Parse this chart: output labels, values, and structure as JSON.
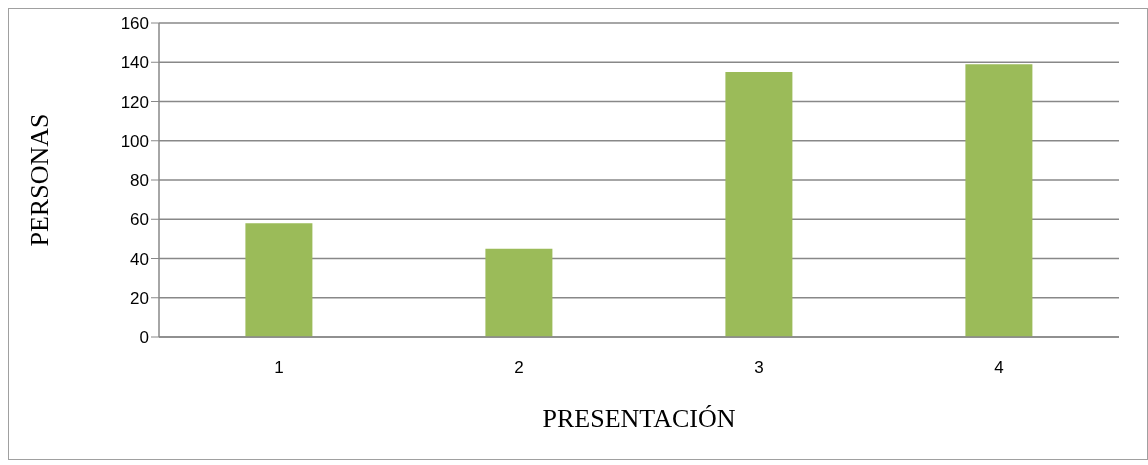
{
  "chart_data": {
    "type": "bar",
    "xlabel": "PRESENTACIÓN",
    "ylabel": "PERSONAS",
    "categories": [
      "1",
      "2",
      "3",
      "4"
    ],
    "values": [
      58,
      45,
      135,
      139
    ],
    "color": "#9bbb59",
    "ylim": [
      0,
      160
    ],
    "yticks": [
      0,
      20,
      40,
      60,
      80,
      100,
      120,
      140,
      160
    ],
    "grid": "y"
  }
}
